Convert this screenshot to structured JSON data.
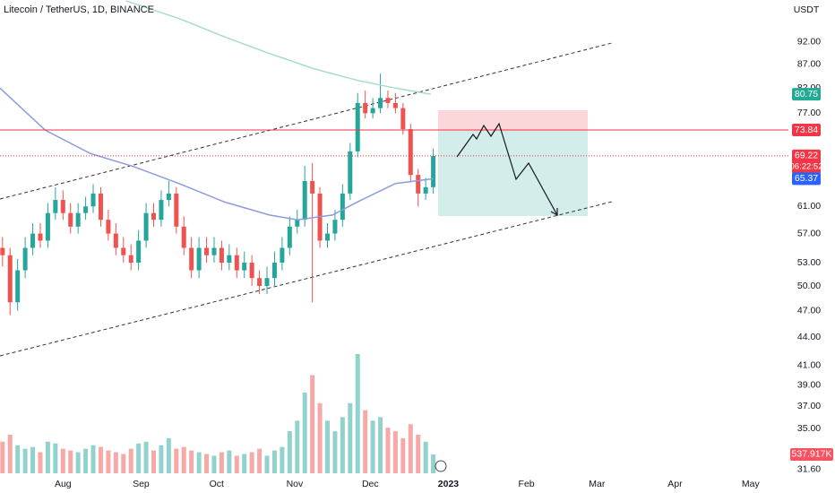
{
  "chart_data": {
    "type": "candlestick",
    "title": "Litecoin / TetherUS, 1D, BINANCE",
    "currency": "USDT",
    "log_scale": true,
    "ylim": [
      29.8,
      102.2
    ],
    "yticks": [
      {
        "value": 92,
        "label": "92.00"
      },
      {
        "value": 87,
        "label": "87.00"
      },
      {
        "value": 82,
        "label": "82.00"
      },
      {
        "value": 77,
        "label": "77.00"
      },
      {
        "value": 61,
        "label": "61.00"
      },
      {
        "value": 57,
        "label": "57.00"
      },
      {
        "value": 53,
        "label": "53.00"
      },
      {
        "value": 50,
        "label": "50.00"
      },
      {
        "value": 47,
        "label": "47.00"
      },
      {
        "value": 44,
        "label": "44.00"
      },
      {
        "value": 41,
        "label": "41.00"
      },
      {
        "value": 39,
        "label": "39.00"
      },
      {
        "value": 37,
        "label": "37.00"
      },
      {
        "value": 35,
        "label": "35.00"
      },
      {
        "value": 31.6,
        "label": "31.60"
      }
    ],
    "xlim": [
      0,
      313
    ],
    "xticks": [
      {
        "value": 25,
        "label": "Aug"
      },
      {
        "value": 56,
        "label": "Sep"
      },
      {
        "value": 86,
        "label": "Oct"
      },
      {
        "value": 117,
        "label": "Nov"
      },
      {
        "value": 147,
        "label": "Dec"
      },
      {
        "value": 178,
        "label": "2023"
      },
      {
        "value": 209,
        "label": "Feb"
      },
      {
        "value": 237,
        "label": "Mar"
      },
      {
        "value": 268,
        "label": "Apr"
      },
      {
        "value": 298,
        "label": "May"
      }
    ],
    "up_color": "#26a69a",
    "down_color": "#ef5350",
    "candles": {
      "x": [
        1,
        4,
        7,
        10,
        13,
        16,
        19,
        22,
        25,
        28,
        31,
        34,
        37,
        40,
        43,
        46,
        49,
        52,
        55,
        58,
        61,
        64,
        67,
        70,
        73,
        76,
        79,
        82,
        85,
        88,
        91,
        94,
        97,
        100,
        103,
        106,
        109,
        112,
        115,
        118,
        121,
        124,
        127,
        130,
        133,
        136,
        139,
        142,
        145,
        148,
        151,
        154,
        157,
        160,
        163,
        166,
        169,
        172
      ],
      "open": [
        55,
        54,
        48,
        52,
        55,
        57,
        56,
        60,
        62,
        60,
        58,
        60,
        61,
        63,
        59,
        57,
        55,
        54,
        53,
        56,
        60,
        59,
        62,
        63,
        58,
        55,
        52,
        55,
        54,
        55,
        53,
        54,
        52,
        53,
        51,
        50,
        51,
        53,
        55,
        58,
        59,
        65,
        63,
        56,
        57,
        59,
        63,
        70,
        79,
        77,
        78,
        80,
        79,
        78,
        74,
        66,
        63,
        64
      ],
      "high": [
        56.5,
        55,
        53.5,
        56.5,
        58.5,
        58.5,
        61.5,
        64,
        63.5,
        61.5,
        61.5,
        62.5,
        64.5,
        64,
        60.5,
        58.5,
        56.5,
        55.5,
        57.5,
        61.5,
        61.5,
        63.5,
        65,
        64,
        59.5,
        56.5,
        56.5,
        56.5,
        56.5,
        56,
        55.5,
        55,
        54.5,
        54,
        52,
        52.5,
        54.5,
        56.5,
        59.5,
        60.5,
        67.5,
        68,
        64,
        58.5,
        60.5,
        64.5,
        71.5,
        81,
        81.5,
        80,
        85,
        81.5,
        81,
        79,
        75,
        67,
        65.5,
        70.5
      ],
      "low": [
        52.5,
        46.5,
        47,
        51,
        54,
        55,
        55,
        59,
        59,
        57,
        57,
        59,
        60,
        58,
        56,
        54,
        53,
        52,
        52,
        55,
        58,
        58,
        61,
        57,
        54,
        51,
        51,
        53,
        53,
        52,
        52,
        51,
        51,
        50,
        49,
        49,
        50,
        52,
        54,
        57,
        58,
        48,
        55,
        55,
        56,
        58,
        62,
        69,
        76,
        76,
        77,
        78,
        77,
        73,
        65,
        61,
        62,
        63
      ],
      "close": [
        54,
        48,
        52,
        55,
        57,
        56,
        60,
        62,
        60,
        58,
        60,
        61,
        63,
        59,
        57,
        55,
        54,
        53,
        56,
        60,
        59,
        62,
        63,
        58,
        55,
        52,
        55,
        54,
        55,
        53,
        54,
        52,
        53,
        51,
        50,
        51,
        53,
        55,
        58,
        59,
        65,
        63,
        56,
        57,
        59,
        63,
        70,
        79,
        77,
        78,
        80,
        79,
        78,
        74,
        66,
        63,
        64,
        69.22
      ],
      "volume": [
        900000,
        1100000,
        800000,
        700000,
        750000,
        600000,
        900000,
        850000,
        700000,
        650000,
        600000,
        700000,
        800000,
        750000,
        650000,
        600000,
        550000,
        700000,
        850000,
        900000,
        650000,
        800000,
        1000000,
        700000,
        750000,
        650000,
        600000,
        550000,
        500000,
        600000,
        650000,
        500000,
        550000,
        600000,
        700000,
        500000,
        650000,
        750000,
        1200000,
        1500000,
        2300000,
        2800000,
        2000000,
        1500000,
        1200000,
        1600000,
        2000000,
        3400000,
        1800000,
        1500000,
        1600000,
        1300000,
        1200000,
        1000000,
        1400000,
        1100000,
        900000,
        537917
      ]
    },
    "moving_averages": [
      {
        "color": "#a8dcc8",
        "x": [
          50,
          71,
          90,
          107,
          125,
          142,
          157,
          171
        ],
        "values": [
          102,
          97.6,
          93,
          89.4,
          86,
          83.6,
          82,
          80.75
        ]
      },
      {
        "color": "#8c9be0",
        "x": [
          0,
          18,
          36,
          53,
          71,
          89,
          107,
          118,
          132,
          142,
          157,
          172
        ],
        "values": [
          82,
          73.8,
          69.6,
          67.4,
          64.6,
          61.7,
          59.7,
          59,
          59.7,
          61.7,
          64.6,
          65.37
        ]
      }
    ],
    "price_badges": [
      {
        "value": 80.75,
        "color": "#22ab94"
      },
      {
        "value": 73.84,
        "color": "#f23645",
        "line": "solid"
      },
      {
        "value": 69.22,
        "color": "#f23645",
        "line": "dotted"
      },
      {
        "value": 65.37,
        "color": "#2962ff"
      }
    ],
    "countdown": "06:22:52",
    "volume_badge": {
      "value": 537917,
      "label": "537.917K",
      "color": "#f7525f"
    }
  }
}
